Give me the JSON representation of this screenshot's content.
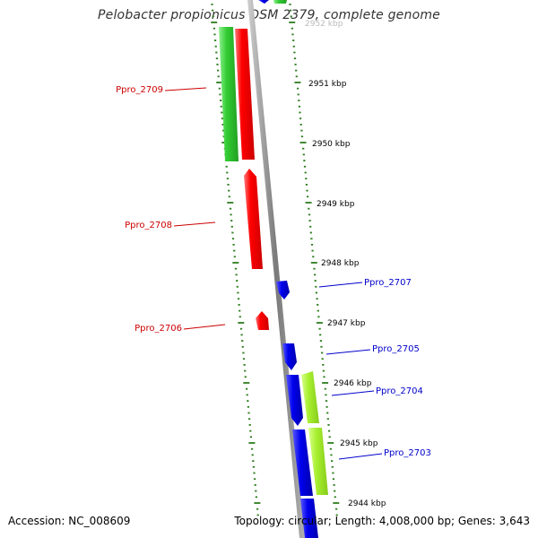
{
  "title": "Pelobacter propionicus DSM 2379, complete genome",
  "accession": "Accession: NC_008609",
  "topology": "Topology: circular; Length: 4,008,000 bp; Genes: 3,643",
  "colors": {
    "backbone": "#888888",
    "tick": "#2e7d1f",
    "gene_red": "#ff0000",
    "gene_green": "#2ecc2e",
    "gene_lightgreen": "#a6f22e",
    "gene_blue": "#0000ee",
    "label_red": "#cc0000",
    "label_blue": "#0000cc"
  },
  "kbp_labels": [
    "2952 kbp",
    "2951 kbp",
    "2950 kbp",
    "2949 kbp",
    "2948 kbp",
    "2947 kbp",
    "2946 kbp",
    "2945 kbp",
    "2944 kbp"
  ],
  "gene_labels": [
    {
      "name": "Ppro_2709",
      "side": "left",
      "color": "red"
    },
    {
      "name": "Ppro_2708",
      "side": "left",
      "color": "red"
    },
    {
      "name": "Ppro_2706",
      "side": "left",
      "color": "red"
    },
    {
      "name": "Ppro_2707",
      "side": "right",
      "color": "blue"
    },
    {
      "name": "Ppro_2705",
      "side": "right",
      "color": "blue"
    },
    {
      "name": "Ppro_2704",
      "side": "right",
      "color": "blue"
    },
    {
      "name": "Ppro_2703",
      "side": "right",
      "color": "blue"
    }
  ]
}
